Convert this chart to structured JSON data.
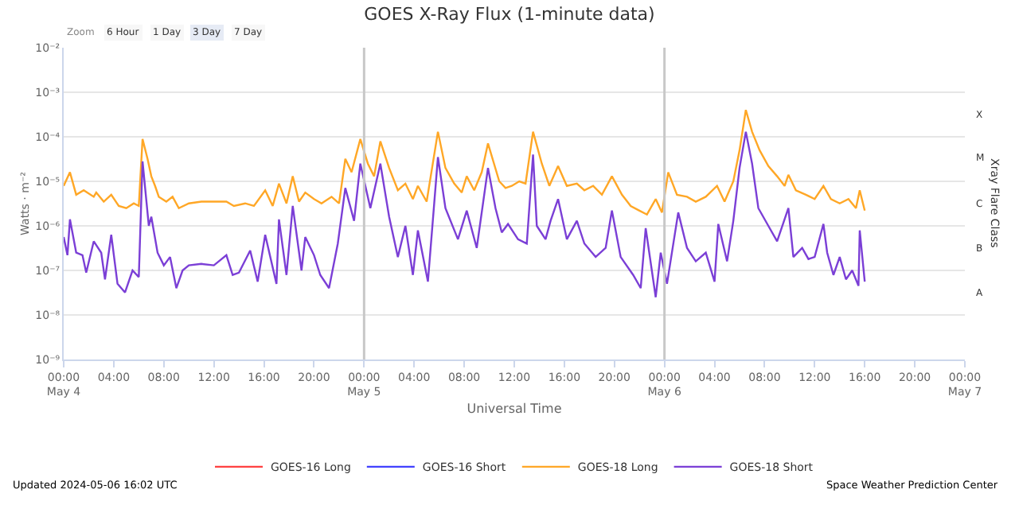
{
  "chart_data": {
    "type": "line",
    "title": "GOES X-Ray Flux (1-minute data)",
    "xlabel": "Universal Time",
    "ylabel": "Watts · m⁻²",
    "y2label": "Xray Flare Class",
    "log": "y",
    "grid": "y",
    "legend": "bottom",
    "marker": "none",
    "line_style": "solid",
    "xlim": [
      "2024-05-04T00:00",
      "2024-05-07T00:00"
    ],
    "xticks": [
      {
        "value": "2024-05-04T00:00",
        "label": "00:00\nMay 4"
      },
      {
        "value": "2024-05-04T04:00",
        "label": "04:00"
      },
      {
        "value": "2024-05-04T08:00",
        "label": "08:00"
      },
      {
        "value": "2024-05-04T12:00",
        "label": "12:00"
      },
      {
        "value": "2024-05-04T16:00",
        "label": "16:00"
      },
      {
        "value": "2024-05-04T20:00",
        "label": "20:00"
      },
      {
        "value": "2024-05-05T00:00",
        "label": "00:00\nMay 5"
      },
      {
        "value": "2024-05-05T04:00",
        "label": "04:00"
      },
      {
        "value": "2024-05-05T08:00",
        "label": "08:00"
      },
      {
        "value": "2024-05-05T12:00",
        "label": "12:00"
      },
      {
        "value": "2024-05-05T16:00",
        "label": "16:00"
      },
      {
        "value": "2024-05-05T20:00",
        "label": "20:00"
      },
      {
        "value": "2024-05-06T00:00",
        "label": "00:00\nMay 6"
      },
      {
        "value": "2024-05-06T04:00",
        "label": "04:00"
      },
      {
        "value": "2024-05-06T08:00",
        "label": "08:00"
      },
      {
        "value": "2024-05-06T12:00",
        "label": "12:00"
      },
      {
        "value": "2024-05-06T16:00",
        "label": "16:00"
      },
      {
        "value": "2024-05-06T20:00",
        "label": "20:00"
      },
      {
        "value": "2024-05-07T00:00",
        "label": "00:00\nMay 7"
      }
    ],
    "ylim": [
      1e-09,
      0.01
    ],
    "yticks": [
      {
        "value": 1e-09,
        "label": "10⁻⁹"
      },
      {
        "value": 1e-08,
        "label": "10⁻⁸"
      },
      {
        "value": 1e-07,
        "label": "10⁻⁷"
      },
      {
        "value": 1e-06,
        "label": "10⁻⁶"
      },
      {
        "value": 1e-05,
        "label": "10⁻⁵"
      },
      {
        "value": 0.0001,
        "label": "10⁻⁴"
      },
      {
        "value": 0.001,
        "label": "10⁻³"
      },
      {
        "value": 0.01,
        "label": "10⁻²"
      }
    ],
    "ref_lines": [
      {
        "axis": "x",
        "value": "2024-05-05T00:00",
        "color": "#c8c8c8"
      },
      {
        "axis": "x",
        "value": "2024-05-06T00:00",
        "color": "#c8c8c8"
      }
    ],
    "annotations": [
      "Zoom",
      "6 Hour",
      "1 Day",
      "3 Day",
      "7 Day",
      "Updated 2024-05-06 16:02 UTC",
      "Space Weather Prediction Center",
      "A",
      "B",
      "C",
      "M",
      "X"
    ],
    "series": [
      {
        "name": "GOES-16 Long",
        "color": "#ff4040"
      },
      {
        "name": "GOES-16 Short",
        "color": "#4040ff"
      },
      {
        "name": "GOES-18 Long",
        "color": "#ffa726",
        "x": [
          "2024-05-04T00:00",
          "2024-05-04T00:30",
          "2024-05-04T01:00",
          "2024-05-04T01:36",
          "2024-05-04T02:24",
          "2024-05-04T02:36",
          "2024-05-04T03:12",
          "2024-05-04T03:48",
          "2024-05-04T04:24",
          "2024-05-04T05:00",
          "2024-05-04T05:36",
          "2024-05-04T06:00",
          "2024-05-04T06:18",
          "2024-05-04T06:42",
          "2024-05-04T07:00",
          "2024-05-04T07:18",
          "2024-05-04T07:36",
          "2024-05-04T08:12",
          "2024-05-04T08:42",
          "2024-05-04T09:12",
          "2024-05-04T10:00",
          "2024-05-04T11:00",
          "2024-05-04T12:00",
          "2024-05-04T13:00",
          "2024-05-04T13:36",
          "2024-05-04T14:30",
          "2024-05-04T15:12",
          "2024-05-04T16:06",
          "2024-05-04T16:42",
          "2024-05-04T17:12",
          "2024-05-04T17:48",
          "2024-05-04T18:18",
          "2024-05-04T18:48",
          "2024-05-04T19:18",
          "2024-05-04T20:00",
          "2024-05-04T20:36",
          "2024-05-04T21:24",
          "2024-05-04T22:00",
          "2024-05-04T22:30",
          "2024-05-04T23:00",
          "2024-05-04T23:42",
          "2024-05-05T00:18",
          "2024-05-05T00:48",
          "2024-05-05T01:18",
          "2024-05-05T02:00",
          "2024-05-05T02:42",
          "2024-05-05T03:18",
          "2024-05-05T03:54",
          "2024-05-05T04:18",
          "2024-05-05T05:00",
          "2024-05-05T05:54",
          "2024-05-05T06:30",
          "2024-05-05T07:12",
          "2024-05-05T07:48",
          "2024-05-05T08:12",
          "2024-05-05T08:48",
          "2024-05-05T09:24",
          "2024-05-05T09:54",
          "2024-05-05T10:48",
          "2024-05-05T11:18",
          "2024-05-05T11:48",
          "2024-05-05T12:24",
          "2024-05-05T12:54",
          "2024-05-05T13:30",
          "2024-05-05T14:12",
          "2024-05-05T14:48",
          "2024-05-05T15:30",
          "2024-05-05T16:12",
          "2024-05-05T17:00",
          "2024-05-05T17:36",
          "2024-05-05T18:18",
          "2024-05-05T19:00",
          "2024-05-05T19:48",
          "2024-05-05T20:36",
          "2024-05-05T21:18",
          "2024-05-05T22:00",
          "2024-05-05T22:36",
          "2024-05-05T23:18",
          "2024-05-05T23:48",
          "2024-05-06T00:18",
          "2024-05-06T01:00",
          "2024-05-06T01:48",
          "2024-05-06T02:30",
          "2024-05-06T03:18",
          "2024-05-06T04:12",
          "2024-05-06T04:48",
          "2024-05-06T05:30",
          "2024-05-06T06:00",
          "2024-05-06T06:30",
          "2024-05-06T07:00",
          "2024-05-06T07:36",
          "2024-05-06T08:18",
          "2024-05-06T09:00",
          "2024-05-06T09:36",
          "2024-05-06T09:54",
          "2024-05-06T10:30",
          "2024-05-06T11:18",
          "2024-05-06T12:00",
          "2024-05-06T12:42",
          "2024-05-06T13:18",
          "2024-05-06T14:00",
          "2024-05-06T14:42",
          "2024-05-06T15:18",
          "2024-05-06T15:36",
          "2024-05-06T16:00"
        ],
        "values": [
          7.9e-06,
          1.6e-05,
          5e-06,
          6.3e-06,
          4.5e-06,
          5.6e-06,
          3.5e-06,
          5e-06,
          2.8e-06,
          2.5e-06,
          3.2e-06,
          2.8e-06,
          8.9e-05,
          3.2e-05,
          1.3e-05,
          7.9e-06,
          4.5e-06,
          3.5e-06,
          4.5e-06,
          2.5e-06,
          3.2e-06,
          3.5e-06,
          3.5e-06,
          3.5e-06,
          2.8e-06,
          3.2e-06,
          2.8e-06,
          6.3e-06,
          2.8e-06,
          8.9e-06,
          3.2e-06,
          1.3e-05,
          3.5e-06,
          5.6e-06,
          4e-06,
          3.2e-06,
          4.5e-06,
          3.2e-06,
          3.2e-05,
          1.6e-05,
          8.9e-05,
          2.5e-05,
          1.3e-05,
          7.9e-05,
          2e-05,
          6.3e-06,
          8.9e-06,
          4e-06,
          7.9e-06,
          3.5e-06,
          0.00013,
          2e-05,
          8.9e-06,
          5.6e-06,
          1.3e-05,
          6.3e-06,
          1.6e-05,
          7.1e-05,
          1e-05,
          7.1e-06,
          7.9e-06,
          1e-05,
          8.9e-06,
          0.00013,
          2.5e-05,
          7.9e-06,
          2.2e-05,
          7.9e-06,
          8.9e-06,
          6.3e-06,
          7.9e-06,
          5e-06,
          1.3e-05,
          5e-06,
          2.8e-06,
          2.2e-06,
          1.8e-06,
          4e-06,
          2e-06,
          1.6e-05,
          5e-06,
          4.5e-06,
          3.5e-06,
          4.5e-06,
          7.9e-06,
          3.5e-06,
          1e-05,
          5e-05,
          0.0004,
          0.00013,
          5e-05,
          2.2e-05,
          1.3e-05,
          7.9e-06,
          1.4e-05,
          6.3e-06,
          5e-06,
          4e-06,
          7.9e-06,
          4e-06,
          3.2e-06,
          4e-06,
          2.5e-06,
          6.3e-06,
          2.2e-06
        ]
      },
      {
        "name": "GOES-18 Short",
        "color": "#7b3fd6",
        "x": [
          "2024-05-04T00:00",
          "2024-05-04T00:18",
          "2024-05-04T00:30",
          "2024-05-04T01:00",
          "2024-05-04T01:30",
          "2024-05-04T01:48",
          "2024-05-04T02:24",
          "2024-05-04T03:00",
          "2024-05-04T03:18",
          "2024-05-04T03:48",
          "2024-05-04T04:18",
          "2024-05-04T04:54",
          "2024-05-04T05:30",
          "2024-05-04T06:00",
          "2024-05-04T06:18",
          "2024-05-04T06:48",
          "2024-05-04T07:00",
          "2024-05-04T07:30",
          "2024-05-04T08:00",
          "2024-05-04T08:30",
          "2024-05-04T09:00",
          "2024-05-04T09:30",
          "2024-05-04T10:00",
          "2024-05-04T11:00",
          "2024-05-04T12:00",
          "2024-05-04T13:00",
          "2024-05-04T13:30",
          "2024-05-04T14:00",
          "2024-05-04T14:54",
          "2024-05-04T15:30",
          "2024-05-04T16:06",
          "2024-05-04T17:00",
          "2024-05-04T17:12",
          "2024-05-04T17:48",
          "2024-05-04T18:18",
          "2024-05-04T19:00",
          "2024-05-04T19:18",
          "2024-05-04T20:00",
          "2024-05-04T20:30",
          "2024-05-04T21:12",
          "2024-05-04T21:54",
          "2024-05-04T22:30",
          "2024-05-04T23:12",
          "2024-05-04T23:42",
          "2024-05-05T00:30",
          "2024-05-05T01:18",
          "2024-05-05T02:00",
          "2024-05-05T02:42",
          "2024-05-05T03:18",
          "2024-05-05T03:54",
          "2024-05-05T04:18",
          "2024-05-05T05:06",
          "2024-05-05T05:54",
          "2024-05-05T06:30",
          "2024-05-05T07:30",
          "2024-05-05T08:12",
          "2024-05-05T09:00",
          "2024-05-05T09:54",
          "2024-05-05T10:30",
          "2024-05-05T11:00",
          "2024-05-05T11:30",
          "2024-05-05T12:18",
          "2024-05-05T13:00",
          "2024-05-05T13:30",
          "2024-05-05T13:48",
          "2024-05-05T14:30",
          "2024-05-05T14:54",
          "2024-05-05T15:30",
          "2024-05-05T16:12",
          "2024-05-05T17:00",
          "2024-05-05T17:36",
          "2024-05-05T18:30",
          "2024-05-05T19:18",
          "2024-05-05T19:48",
          "2024-05-05T20:30",
          "2024-05-05T21:30",
          "2024-05-05T22:06",
          "2024-05-05T22:30",
          "2024-05-05T23:18",
          "2024-05-05T23:42",
          "2024-05-06T00:12",
          "2024-05-06T01:06",
          "2024-05-06T01:48",
          "2024-05-06T02:30",
          "2024-05-06T03:18",
          "2024-05-06T04:00",
          "2024-05-06T04:18",
          "2024-05-06T05:00",
          "2024-05-06T05:30",
          "2024-05-06T06:00",
          "2024-05-06T06:30",
          "2024-05-06T07:00",
          "2024-05-06T07:30",
          "2024-05-06T08:18",
          "2024-05-06T09:00",
          "2024-05-06T09:54",
          "2024-05-06T10:18",
          "2024-05-06T11:00",
          "2024-05-06T11:30",
          "2024-05-06T12:00",
          "2024-05-06T12:42",
          "2024-05-06T13:00",
          "2024-05-06T13:30",
          "2024-05-06T14:00",
          "2024-05-06T14:30",
          "2024-05-06T15:00",
          "2024-05-06T15:30",
          "2024-05-06T15:36",
          "2024-05-06T16:00"
        ],
        "values": [
          5.6e-07,
          2.2e-07,
          1.4e-06,
          2.5e-07,
          2.2e-07,
          8.9e-08,
          4.5e-07,
          2.5e-07,
          6.3e-08,
          6.3e-07,
          5e-08,
          3.2e-08,
          1e-07,
          7.1e-08,
          2.8e-05,
          1e-06,
          1.6e-06,
          2.5e-07,
          1.3e-07,
          2e-07,
          4e-08,
          1e-07,
          1.3e-07,
          1.4e-07,
          1.3e-07,
          2.2e-07,
          7.9e-08,
          8.9e-08,
          2.8e-07,
          5.6e-08,
          6.3e-07,
          5e-08,
          1.4e-06,
          7.9e-08,
          2.8e-06,
          1e-07,
          5.6e-07,
          2.2e-07,
          7.9e-08,
          4e-08,
          4e-07,
          7.1e-06,
          1.3e-06,
          2.5e-05,
          2.5e-06,
          2.5e-05,
          1.6e-06,
          2e-07,
          1e-06,
          7.9e-08,
          7.9e-07,
          5.6e-08,
          3.5e-05,
          2.5e-06,
          5e-07,
          2.2e-06,
          3.2e-07,
          2e-05,
          2.5e-06,
          7.1e-07,
          1.1e-06,
          5e-07,
          4e-07,
          4e-05,
          1e-06,
          5e-07,
          1.3e-06,
          4e-06,
          5e-07,
          1.3e-06,
          4e-07,
          2e-07,
          3.2e-07,
          2.2e-06,
          2e-07,
          7.9e-08,
          4e-08,
          8.9e-07,
          2.5e-08,
          2.5e-07,
          5e-08,
          2e-06,
          3.2e-07,
          1.6e-07,
          2.5e-07,
          5.6e-08,
          1.1e-06,
          1.6e-07,
          1.3e-06,
          2e-05,
          0.00013,
          2.5e-05,
          2.5e-06,
          1e-06,
          4.5e-07,
          2.5e-06,
          2e-07,
          3.2e-07,
          1.8e-07,
          2e-07,
          1.1e-06,
          2.5e-07,
          7.9e-08,
          2e-07,
          6.3e-08,
          1e-07,
          4.5e-08,
          7.9e-07,
          5.6e-08
        ]
      }
    ]
  }
}
